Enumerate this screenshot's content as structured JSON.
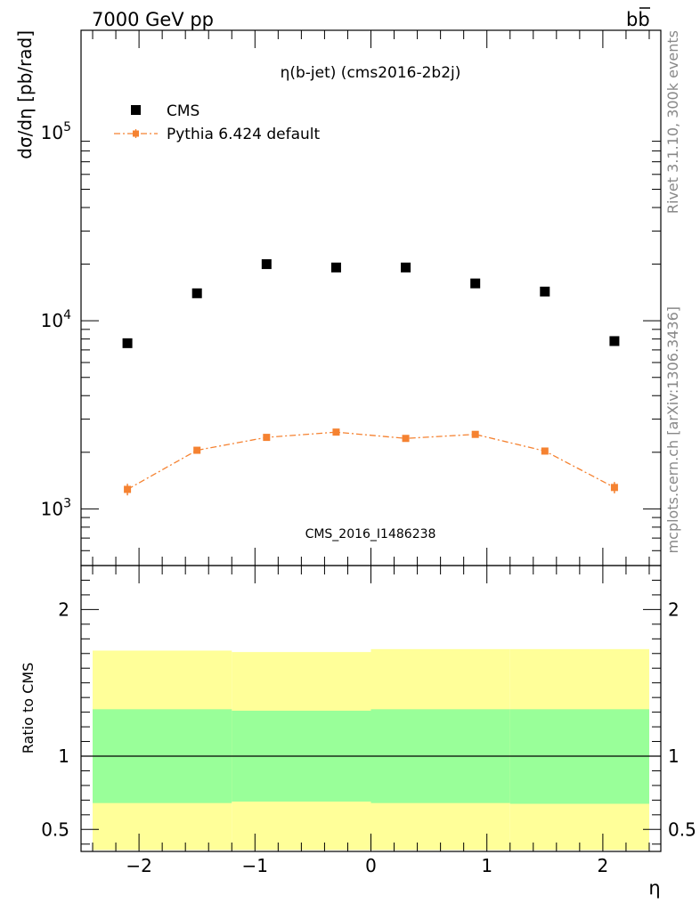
{
  "header": {
    "left": "7000 GeV pp",
    "right": "b",
    "right_bar": "b"
  },
  "side_labels": {
    "rivet": "Rivet 3.1.10,  300k events",
    "mcplots": "mcplots.cern.ch [arXiv:1306.3436]"
  },
  "watermark": "CMS_2016_I1486238",
  "chart_data": [
    {
      "type": "scatter",
      "title": "η(b-jet) (cms2016-2b2j)",
      "xlabel": "",
      "ylabel": "dσ/dη [pb/rad]",
      "yscale": "log",
      "xlim": [
        -2.5,
        2.5
      ],
      "ylim": [
        500,
        350000
      ],
      "y_ticks": [
        {
          "value": 1000,
          "label": "10",
          "exp": "3"
        },
        {
          "value": 10000,
          "label": "10",
          "exp": "4"
        },
        {
          "value": 100000,
          "label": "10",
          "exp": "5"
        }
      ],
      "legend_position": "top-left",
      "series": [
        {
          "name": "CMS",
          "color": "#000000",
          "marker": "square",
          "x": [
            -2.1,
            -1.5,
            -0.9,
            -0.3,
            0.3,
            0.9,
            1.5,
            2.1
          ],
          "y": [
            7600,
            14000,
            20000,
            19200,
            19200,
            15800,
            14300,
            7800
          ]
        },
        {
          "name": "Pythia 6.424 default",
          "color": "#f58231",
          "marker": "square",
          "line": "dash-dot",
          "x": [
            -2.1,
            -1.5,
            -0.9,
            -0.3,
            0.3,
            0.9,
            1.5,
            2.1
          ],
          "y": [
            1270,
            2050,
            2400,
            2560,
            2370,
            2490,
            2030,
            1300
          ],
          "yerr": [
            90,
            80,
            90,
            90,
            90,
            100,
            80,
            90
          ]
        }
      ]
    },
    {
      "type": "area",
      "xlabel": "η",
      "ylabel": "Ratio to CMS",
      "ylim": [
        0.35,
        2.3
      ],
      "x_ticks": [
        -2,
        -1,
        0,
        1,
        2
      ],
      "x_tick_labels": [
        "−2",
        "−1",
        "0",
        "1",
        "2"
      ],
      "y_ticks": [
        0.5,
        1,
        2
      ],
      "y_tick_labels": [
        "0.5",
        "1",
        "2"
      ],
      "reference_line": 1,
      "bands": [
        {
          "color": "#ffff99",
          "bins": [
            [
              -2.4,
              -1.2
            ],
            [
              -1.2,
              0.0
            ],
            [
              0.0,
              1.2
            ],
            [
              1.2,
              2.4
            ]
          ],
          "low": [
            0.36,
            0.36,
            0.36,
            0.36
          ],
          "high": [
            1.72,
            1.71,
            1.73,
            1.73
          ]
        },
        {
          "color": "#99ff99",
          "bins": [
            [
              -2.4,
              -1.2
            ],
            [
              -1.2,
              0.0
            ],
            [
              0.0,
              1.2
            ],
            [
              1.2,
              2.4
            ]
          ],
          "low": [
            0.68,
            0.69,
            0.68,
            0.675
          ],
          "high": [
            1.32,
            1.31,
            1.32,
            1.32
          ]
        }
      ]
    }
  ]
}
